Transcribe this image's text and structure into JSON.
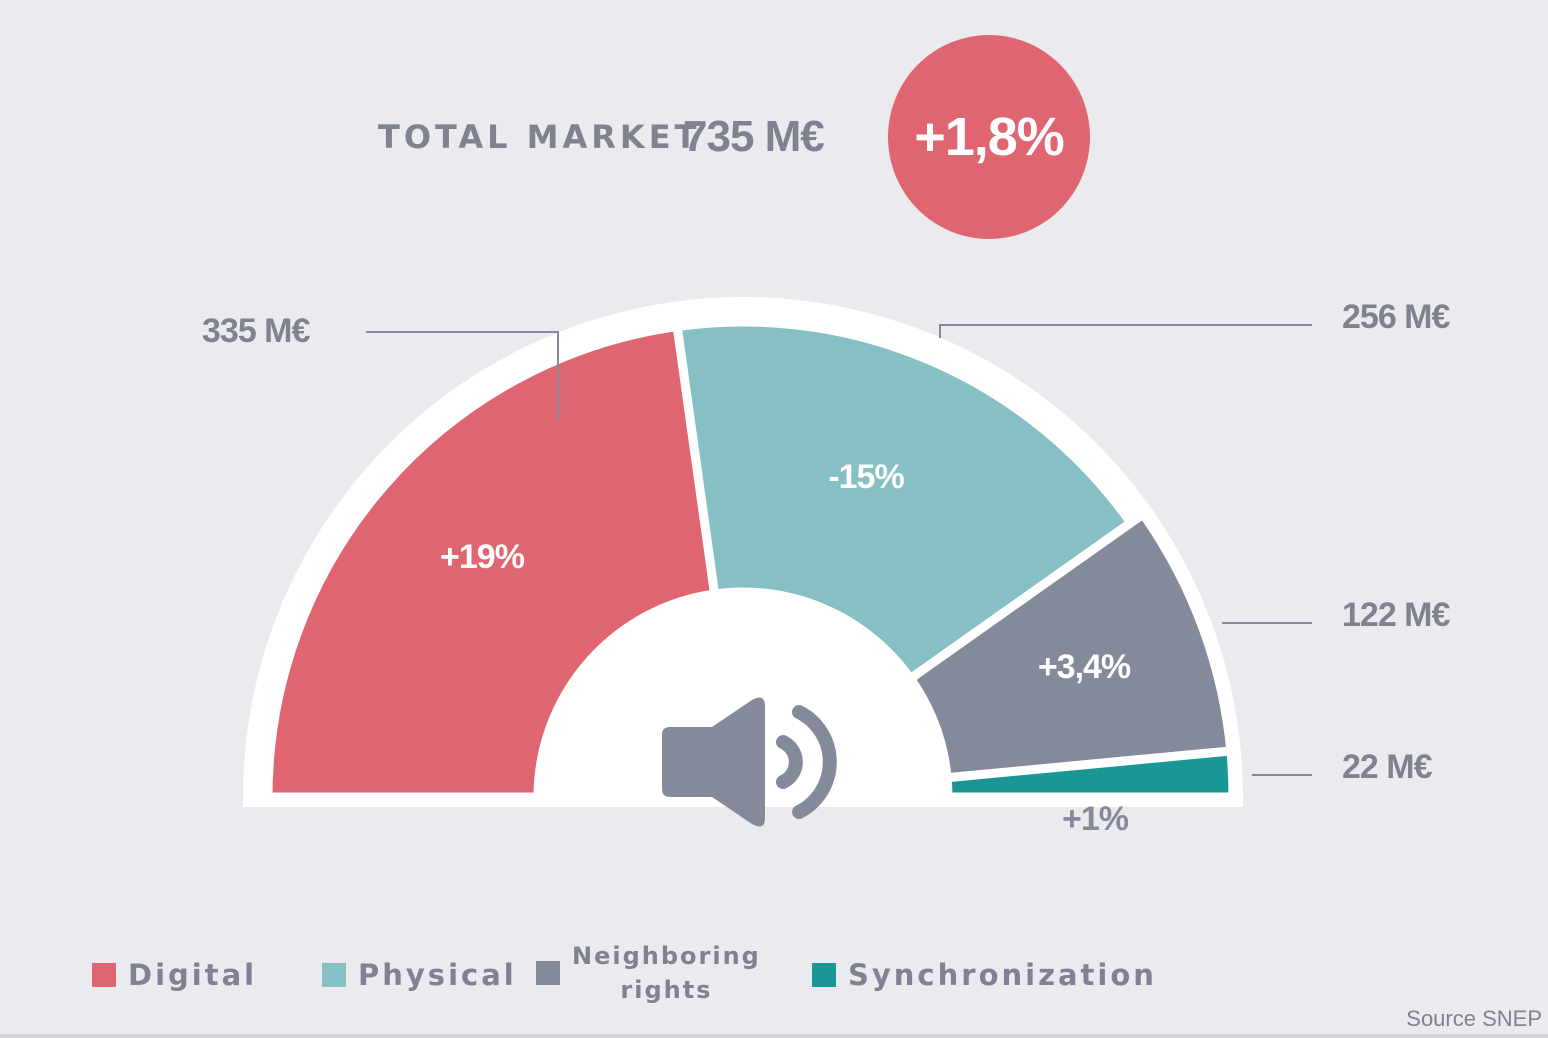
{
  "header": {
    "label": "TOTAL MARKET",
    "total": "735 M€",
    "growth": "+1,8%"
  },
  "source": "Source SNEP",
  "chart_data": {
    "type": "pie",
    "variant": "half-donut",
    "unit": "M€",
    "total": 735,
    "total_growth": "+1,8%",
    "categories": [
      "Digital",
      "Physical",
      "Neighboring rights",
      "Synchronization"
    ],
    "values": [
      335,
      256,
      122,
      22
    ],
    "value_labels": [
      "335 M€",
      "256 M€",
      "122 M€",
      "22 M€"
    ],
    "growth_labels": [
      "+19%",
      "-15%",
      "+3,4%",
      "+1%"
    ],
    "colors": [
      "#df6670",
      "#86c0c4",
      "#858a9b",
      "#1a9696"
    ],
    "legend_position": "bottom",
    "legend": [
      {
        "lines": [
          "Digital"
        ],
        "color": "#df6670"
      },
      {
        "lines": [
          "Physical"
        ],
        "color": "#86c0c4"
      },
      {
        "lines": [
          "Neighboring",
          "rights"
        ],
        "color": "#858a9b"
      },
      {
        "lines": [
          "Synchronization"
        ],
        "color": "#1a9696"
      }
    ],
    "center_icon": "speaker-volume-icon"
  }
}
